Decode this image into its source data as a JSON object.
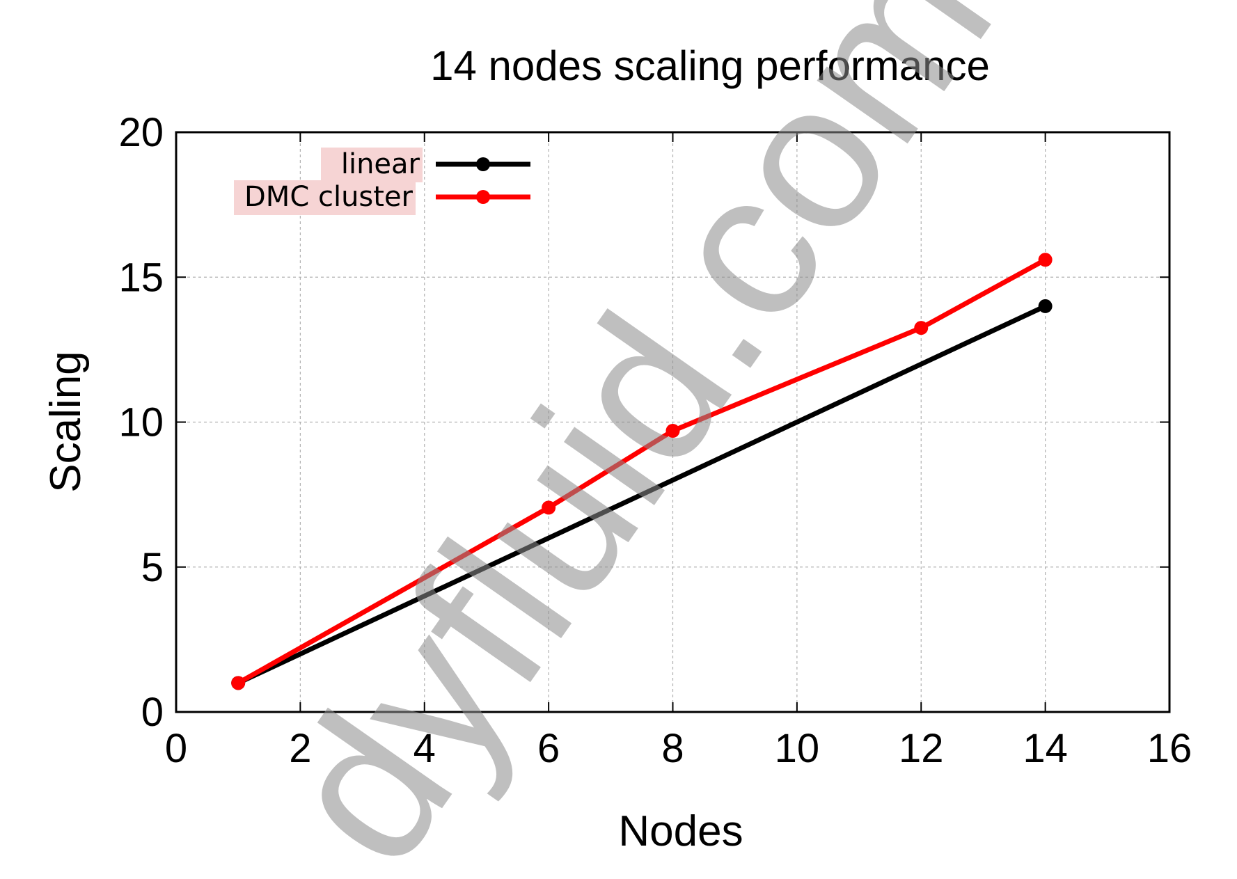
{
  "chart_data": {
    "type": "line",
    "title": "14 nodes scaling performance",
    "xlabel": "Nodes",
    "ylabel": "Scaling",
    "xlim": [
      0,
      16
    ],
    "ylim": [
      0,
      20
    ],
    "xticks": [
      0,
      2,
      4,
      6,
      8,
      10,
      12,
      14,
      16
    ],
    "yticks": [
      0,
      5,
      10,
      15,
      20
    ],
    "grid": true,
    "legend_position": "top-left",
    "series": [
      {
        "name": "linear",
        "color": "#000000",
        "x": [
          1,
          14
        ],
        "y": [
          1,
          14
        ]
      },
      {
        "name": "DMC cluster",
        "color": "#ff0000",
        "x": [
          1,
          6,
          8,
          12,
          14
        ],
        "y": [
          1,
          7.05,
          9.7,
          13.25,
          15.6
        ]
      }
    ],
    "watermark": "dyfluid.com"
  }
}
